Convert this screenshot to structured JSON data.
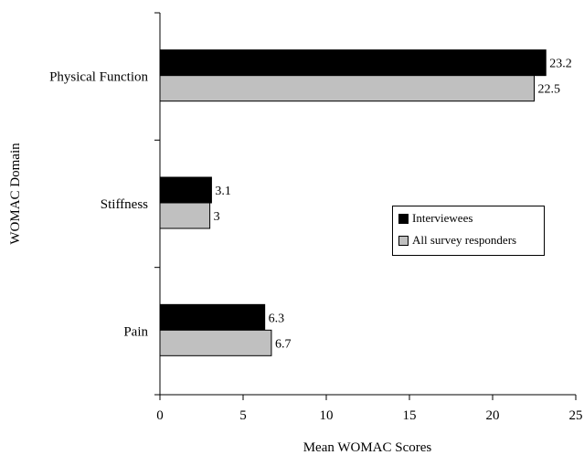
{
  "chart_data": {
    "type": "bar",
    "orientation": "horizontal",
    "categories": [
      "Physical Function",
      "Stiffness",
      "Pain"
    ],
    "series": [
      {
        "name": "Interviewees",
        "color": "#000000",
        "values": [
          23.2,
          3.1,
          6.3
        ],
        "labels": [
          "23.2",
          "3.1",
          "6.3"
        ]
      },
      {
        "name": "All survey responders",
        "color": "#c0c0c0",
        "values": [
          22.5,
          3,
          6.7
        ],
        "labels": [
          "22.5",
          "3",
          "6.7"
        ]
      }
    ],
    "xlabel": "Mean WOMAC Scores",
    "ylabel": "WOMAC Domain",
    "xlim": [
      0,
      25
    ],
    "xticks": [
      0,
      5,
      10,
      15,
      20,
      25
    ],
    "xtick_labels": [
      "0",
      "5",
      "10",
      "15",
      "20",
      "25"
    ],
    "grid": false,
    "legend_position": "right-center"
  }
}
